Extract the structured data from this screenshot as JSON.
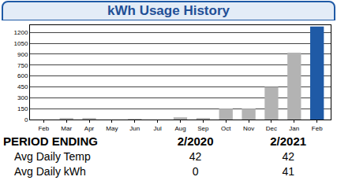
{
  "chart_data": {
    "type": "bar",
    "title": "kWh Usage History",
    "categories": [
      "Feb",
      "Mar",
      "Apr",
      "May",
      "Jun",
      "Jul",
      "Aug",
      "Sep",
      "Oct",
      "Nov",
      "Dec",
      "Jan",
      "Feb"
    ],
    "values": [
      0,
      20,
      20,
      0,
      10,
      0,
      30,
      20,
      150,
      150,
      450,
      920,
      1280
    ],
    "colors": [
      "#b3b3b3",
      "#b3b3b3",
      "#b3b3b3",
      "#b3b3b3",
      "#b3b3b3",
      "#b3b3b3",
      "#b3b3b3",
      "#b3b3b3",
      "#b3b3b3",
      "#b3b3b3",
      "#b3b3b3",
      "#b3b3b3",
      "#1f5aa6"
    ],
    "ylim": [
      0,
      1300
    ],
    "yticks": [
      0,
      150,
      300,
      450,
      600,
      750,
      900,
      1050,
      1200
    ],
    "grid": true
  },
  "table": {
    "header": [
      "PERIOD ENDING",
      "2/2020",
      "2/2021"
    ],
    "rows": [
      [
        "Avg Daily Temp",
        "42",
        "42"
      ],
      [
        "Avg Daily kWh",
        "0",
        "41"
      ]
    ]
  }
}
